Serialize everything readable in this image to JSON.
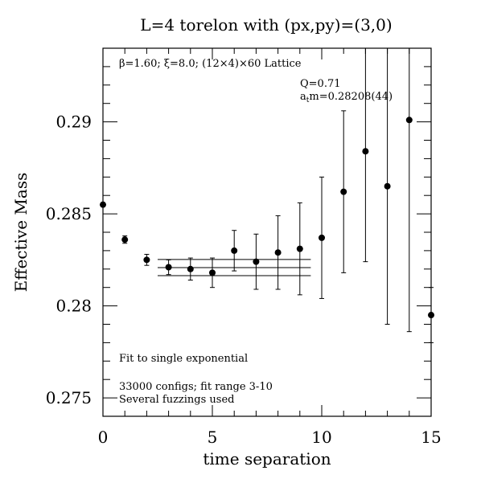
{
  "chart_data": {
    "type": "scatter",
    "title": "L=4 torelon with (px,py)=(3,0)",
    "xlabel": "time separation",
    "ylabel": "Effective Mass",
    "xlim": [
      0,
      15
    ],
    "ylim": [
      0.274,
      0.294
    ],
    "x_ticks": [
      0,
      5,
      10,
      15
    ],
    "x_tick_labels": [
      "0",
      "5",
      "10",
      "15"
    ],
    "y_ticks": [
      0.275,
      0.28,
      0.285,
      0.29
    ],
    "y_tick_labels": [
      "0.275",
      "0.28",
      "0.285",
      "0.29"
    ],
    "grid": false,
    "series": [
      {
        "x": [
          0,
          1,
          2,
          3,
          4,
          5,
          6,
          7,
          8,
          9,
          10,
          11,
          12,
          13,
          14,
          15
        ],
        "y": [
          0.2855,
          0.2836,
          0.2825,
          0.2821,
          0.282,
          0.2818,
          0.283,
          0.2824,
          0.2829,
          0.2831,
          0.2837,
          0.2862,
          0.2884,
          0.2865,
          0.2901,
          0.2795
        ],
        "err": [
          0.0001,
          0.0002,
          0.0003,
          0.0004,
          0.0006,
          0.0008,
          0.0011,
          0.0015,
          0.002,
          0.0025,
          0.0033,
          0.0044,
          0.006,
          0.0075,
          0.0115,
          0.0015
        ]
      }
    ],
    "fit": {
      "x_range": [
        2.5,
        9.5
      ],
      "central": 0.28208,
      "error": 0.00044
    },
    "annotations": {
      "lattice": "β=1.60; ξ=8.0; (12×4)×60 Lattice",
      "q": "Q=0.71",
      "atm_prefix": "a",
      "atm_sub": "t",
      "atm_suffix": "m=0.28208(44)",
      "fit_label": "Fit to single exponential",
      "configs": "33000 configs; fit range 3-10",
      "fuzz": "Several fuzzings used"
    }
  }
}
